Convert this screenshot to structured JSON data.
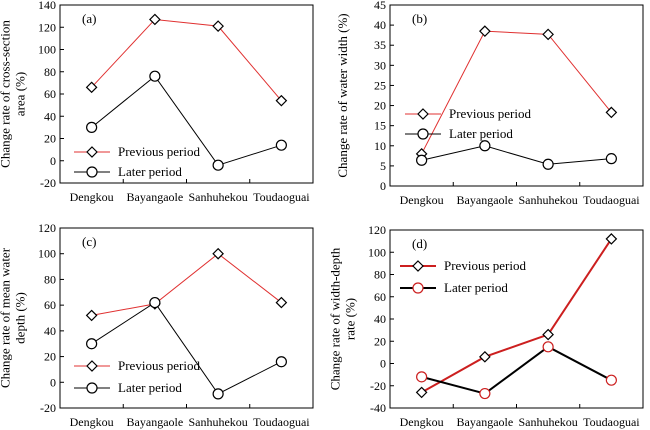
{
  "chart_data": [
    {
      "type": "line",
      "panel_label": "(a)",
      "ylabel_lines": [
        "Change rate of cross-section",
        "area (%)"
      ],
      "categories": [
        "Dengkou",
        "Bayangaole",
        "Sanhuhekou",
        "Toudaoguai"
      ],
      "ylim": [
        -20,
        140
      ],
      "yticks": [
        -20,
        0,
        20,
        40,
        60,
        80,
        100,
        120,
        140
      ],
      "legend_position": "bottom-left",
      "series": [
        {
          "name": "Previous period",
          "marker": "diamond",
          "color": "#e03030",
          "marker_color": "#000000",
          "values": [
            66,
            127,
            121,
            54
          ]
        },
        {
          "name": "Later period",
          "marker": "circle",
          "color": "#000000",
          "marker_color": "#000000",
          "values": [
            30,
            76,
            -4,
            14
          ]
        }
      ]
    },
    {
      "type": "line",
      "panel_label": "(b)",
      "ylabel_lines": [
        "Change rate of water width (%)"
      ],
      "categories": [
        "Dengkou",
        "Bayangaole",
        "Sanhuhekou",
        "Toudaoguai"
      ],
      "ylim": [
        0,
        45
      ],
      "yticks": [
        0,
        5,
        10,
        15,
        20,
        25,
        30,
        35,
        40,
        45
      ],
      "legend_position": "center-left",
      "series": [
        {
          "name": "Previous period",
          "marker": "diamond",
          "color": "#e03030",
          "marker_color": "#000000",
          "values": [
            8,
            38.5,
            37.7,
            18.3
          ]
        },
        {
          "name": "Later period",
          "marker": "circle",
          "color": "#000000",
          "marker_color": "#000000",
          "values": [
            6.4,
            10,
            5.4,
            6.8
          ]
        }
      ]
    },
    {
      "type": "line",
      "panel_label": "(c)",
      "ylabel_lines": [
        "Change rate of mean water",
        "depth (%)"
      ],
      "categories": [
        "Dengkou",
        "Bayangaole",
        "Sanhuhekou",
        "Toudaoguai"
      ],
      "ylim": [
        -20,
        120
      ],
      "yticks": [
        -20,
        0,
        20,
        40,
        60,
        80,
        100,
        120
      ],
      "legend_position": "bottom-left",
      "series": [
        {
          "name": "Previous period",
          "marker": "diamond",
          "color": "#e03030",
          "marker_color": "#000000",
          "values": [
            52,
            61,
            100,
            62
          ]
        },
        {
          "name": "Later period",
          "marker": "circle",
          "color": "#000000",
          "marker_color": "#000000",
          "values": [
            30,
            62,
            -9,
            16
          ]
        }
      ]
    },
    {
      "type": "line",
      "panel_label": "(d)",
      "ylabel_lines": [
        "Change rate of width-depth",
        "rate (%)"
      ],
      "categories": [
        "Dengkou",
        "Bayangaole",
        "Sanhuhekou",
        "Toudaoguai"
      ],
      "ylim": [
        -40,
        120
      ],
      "yticks": [
        -40,
        -20,
        0,
        20,
        40,
        60,
        80,
        100,
        120
      ],
      "legend_position": "top-left",
      "series": [
        {
          "name": "Previous period",
          "marker": "diamond",
          "color": "#cc1f1f",
          "marker_color": "#000000",
          "values": [
            -26,
            6,
            26,
            112
          ]
        },
        {
          "name": "Later period",
          "marker": "circle",
          "color": "#000000",
          "marker_color": "#cc1f1f",
          "values": [
            -12,
            -27,
            15,
            -15
          ]
        }
      ]
    }
  ]
}
